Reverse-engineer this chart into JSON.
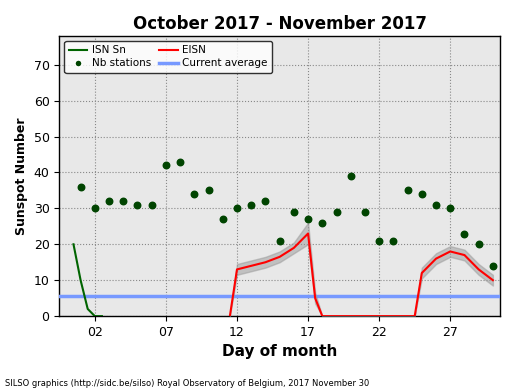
{
  "title": "October 2017 - November 2017",
  "xlabel": "Day of month",
  "ylabel": "Sunspot Number",
  "footer": "SILSO graphics (http://sidc.be/silso) Royal Observatory of Belgium, 2017 November 30",
  "ylim": [
    0,
    78
  ],
  "xlim": [
    -0.5,
    30.5
  ],
  "yticks": [
    0,
    10,
    20,
    30,
    40,
    50,
    60,
    70
  ],
  "xticks": [
    2,
    7,
    12,
    17,
    22,
    27
  ],
  "current_average": 5.5,
  "isn_sn_x": [
    0.5,
    1.0,
    1.5,
    2.0,
    2.5
  ],
  "isn_sn_y": [
    20,
    10,
    2,
    0,
    0
  ],
  "eisn_x": [
    11.5,
    12,
    13,
    14,
    15,
    16,
    17,
    17.5,
    18,
    19,
    20,
    20.5,
    24.5,
    25,
    26,
    27,
    28,
    29,
    30
  ],
  "eisn_y": [
    0,
    13,
    14,
    15,
    16.5,
    19,
    23,
    5,
    0,
    0,
    0,
    0,
    0,
    12,
    16,
    18,
    17,
    13,
    10
  ],
  "eisn_upper": [
    0,
    14.5,
    15.5,
    16.5,
    18,
    20.5,
    26,
    6.5,
    0,
    0,
    0,
    0,
    0,
    13.5,
    17.5,
    19.5,
    18.5,
    14.5,
    11.5
  ],
  "eisn_lower": [
    0,
    11.5,
    12.5,
    13.5,
    15,
    17.5,
    20,
    3.5,
    0,
    0,
    0,
    0,
    0,
    10.5,
    14.5,
    16.5,
    15.5,
    11.5,
    8.5
  ],
  "nb_stations_x": [
    1,
    2,
    3,
    4,
    5,
    6,
    7,
    8,
    9,
    10,
    11,
    12,
    13,
    14,
    15,
    16,
    17,
    18,
    19,
    20,
    21,
    22,
    23,
    24,
    25,
    26,
    27,
    28,
    29,
    30
  ],
  "nb_stations_y": [
    36,
    30,
    32,
    32,
    31,
    31,
    42,
    43,
    34,
    35,
    27,
    30,
    31,
    32,
    21,
    29,
    27,
    26,
    29,
    39,
    29,
    21,
    21,
    35,
    34,
    31,
    30,
    23,
    20,
    14
  ],
  "bg_color": "#e8e8e8",
  "grid_color": "#888888",
  "isn_color": "#006400",
  "eisn_color": "#ff0000",
  "eisn_shade_color": "#999999",
  "avg_color": "#7799ff",
  "dots_color": "#004400",
  "legend_bg": "#ffffff"
}
